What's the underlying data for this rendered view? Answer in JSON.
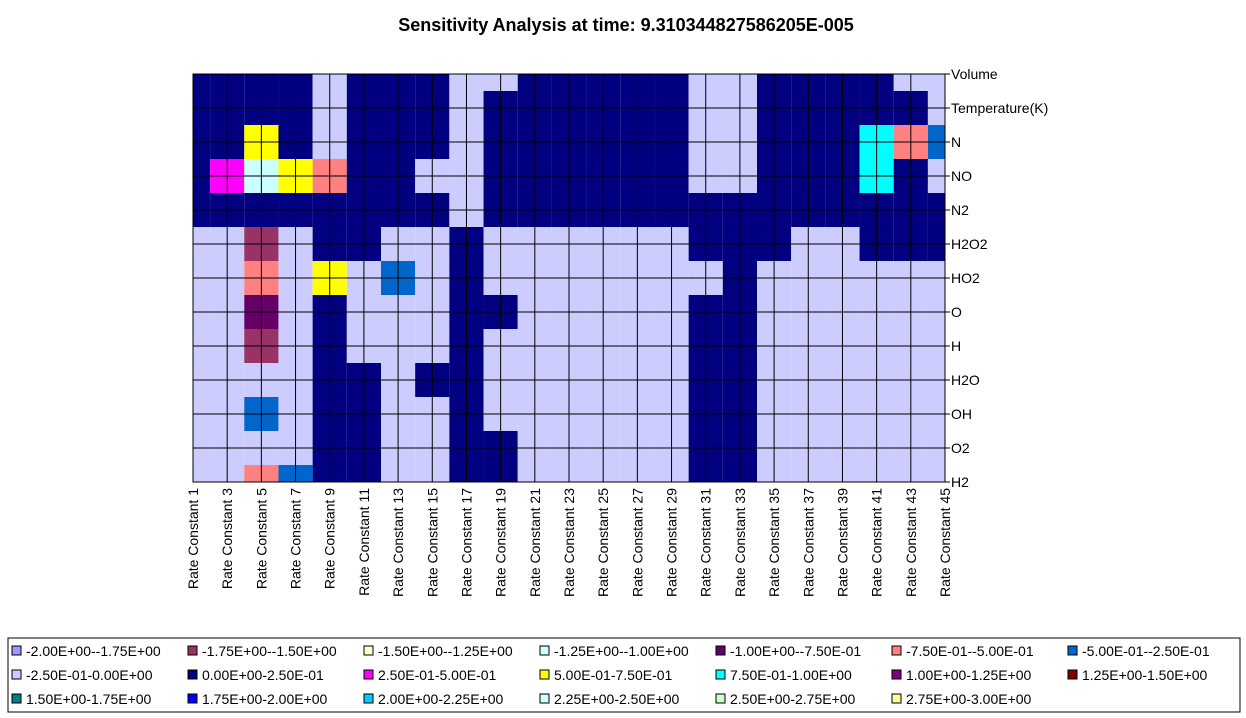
{
  "chart_data": {
    "type": "contour",
    "title": "Sensitivity Analysis at time:  9.310344827586205E-005",
    "x_categories": [
      "Rate Constant 1",
      "Rate Constant 3",
      "Rate Constant 5",
      "Rate Constant 7",
      "Rate Constant 9",
      "Rate Constant 11",
      "Rate Constant 13",
      "Rate Constant 15",
      "Rate Constant 17",
      "Rate Constant 19",
      "Rate Constant 21",
      "Rate Constant 23",
      "Rate Constant 25",
      "Rate Constant 27",
      "Rate Constant 29",
      "Rate Constant 31",
      "Rate Constant 33",
      "Rate Constant 35",
      "Rate Constant 37",
      "Rate Constant 39",
      "Rate Constant 41",
      "Rate Constant 43",
      "Rate Constant 45"
    ],
    "y_categories": [
      "Volume",
      "Temperature(K)",
      "N",
      "NO",
      "N2",
      "H2O2",
      "HO2",
      "O",
      "H",
      "H2O",
      "OH",
      "O2",
      "H2"
    ],
    "z": [
      [
        0.1,
        0.1,
        0.1,
        0.1,
        -0.1,
        0.1,
        0.1,
        0.1,
        -0.1,
        -0.1,
        0.1,
        0.1,
        0.1,
        0.1,
        0.1,
        -0.1,
        -0.1,
        0.1,
        0.1,
        0.1,
        0.1,
        -0.1,
        -0.1
      ],
      [
        0.1,
        0.1,
        0.1,
        0.1,
        -0.1,
        0.1,
        0.1,
        0.1,
        -0.1,
        0.1,
        0.1,
        0.1,
        0.1,
        0.1,
        0.1,
        -0.1,
        -0.1,
        0.1,
        0.1,
        0.1,
        0.1,
        0.1,
        -0.1
      ],
      [
        0.1,
        0.1,
        0.6,
        0.1,
        -0.1,
        0.1,
        0.1,
        0.1,
        -0.1,
        0.1,
        0.1,
        0.1,
        0.1,
        0.1,
        0.1,
        -0.1,
        -0.1,
        0.1,
        0.1,
        0.1,
        0.9,
        -0.6,
        -0.3
      ],
      [
        0.1,
        0.3,
        2.4,
        0.6,
        -0.6,
        0.1,
        0.1,
        -0.1,
        -0.1,
        0.1,
        0.1,
        0.1,
        0.1,
        0.1,
        0.1,
        -0.1,
        -0.1,
        0.1,
        0.1,
        0.1,
        0.9,
        0.1,
        -0.1
      ],
      [
        0.1,
        0.1,
        0.1,
        0.1,
        0.1,
        0.1,
        0.1,
        0.1,
        -0.1,
        0.1,
        0.1,
        0.1,
        0.1,
        0.1,
        0.1,
        0.1,
        0.1,
        0.1,
        0.1,
        0.1,
        0.1,
        0.1,
        0.1
      ],
      [
        -0.1,
        -0.1,
        -1.6,
        -0.1,
        0.1,
        0.1,
        -0.1,
        -0.1,
        0.1,
        -0.1,
        -0.1,
        -0.1,
        -0.1,
        -0.1,
        -0.1,
        0.1,
        0.1,
        0.1,
        -0.1,
        -0.1,
        0.1,
        0.1,
        0.1
      ],
      [
        -0.1,
        -0.1,
        -0.6,
        -0.1,
        0.6,
        -0.1,
        -0.3,
        -0.1,
        0.1,
        -0.1,
        -0.1,
        -0.1,
        -0.1,
        -0.1,
        -0.1,
        -0.1,
        0.1,
        -0.1,
        -0.1,
        -0.1,
        -0.1,
        -0.1,
        -0.1
      ],
      [
        -0.1,
        -0.1,
        -0.9,
        -0.1,
        0.1,
        -0.1,
        -0.1,
        -0.1,
        0.1,
        0.1,
        -0.1,
        -0.1,
        -0.1,
        -0.1,
        -0.1,
        0.1,
        0.1,
        -0.1,
        -0.1,
        -0.1,
        -0.1,
        -0.1,
        -0.1
      ],
      [
        -0.1,
        -0.1,
        -1.6,
        -0.1,
        0.1,
        -0.1,
        -0.1,
        -0.1,
        0.1,
        -0.1,
        -0.1,
        -0.1,
        -0.1,
        -0.1,
        -0.1,
        0.1,
        0.1,
        -0.1,
        -0.1,
        -0.1,
        -0.1,
        -0.1,
        -0.1
      ],
      [
        -0.1,
        -0.1,
        -0.1,
        -0.1,
        0.1,
        0.1,
        -0.1,
        0.1,
        0.1,
        -0.1,
        -0.1,
        -0.1,
        -0.1,
        -0.1,
        -0.1,
        0.1,
        0.1,
        -0.1,
        -0.1,
        -0.1,
        -0.1,
        -0.1,
        -0.1
      ],
      [
        -0.1,
        -0.1,
        -0.4,
        -0.1,
        0.1,
        0.1,
        -0.1,
        -0.1,
        0.1,
        -0.1,
        -0.1,
        -0.1,
        -0.1,
        -0.1,
        -0.1,
        0.1,
        0.1,
        -0.1,
        -0.1,
        -0.1,
        -0.1,
        -0.1,
        -0.1
      ],
      [
        -0.1,
        -0.1,
        -0.1,
        -0.1,
        0.1,
        0.1,
        -0.1,
        -0.1,
        0.1,
        0.1,
        -0.1,
        -0.1,
        -0.1,
        -0.1,
        -0.1,
        0.1,
        0.1,
        -0.1,
        -0.1,
        -0.1,
        -0.1,
        -0.1,
        -0.1
      ],
      [
        -0.1,
        -0.1,
        -0.6,
        -0.3,
        0.1,
        0.1,
        -0.1,
        -0.1,
        0.1,
        0.1,
        -0.1,
        -0.1,
        -0.1,
        -0.1,
        -0.1,
        0.1,
        0.1,
        -0.1,
        -0.1,
        -0.1,
        -0.1,
        -0.1,
        -0.1
      ]
    ],
    "bands": [
      {
        "name": "-2.00E+00--1.75E+00",
        "color": "#9999ff",
        "range": [
          -2,
          -1.75
        ]
      },
      {
        "name": "-1.75E+00--1.50E+00",
        "color": "#993366",
        "range": [
          -1.75,
          -1.5
        ]
      },
      {
        "name": "-1.50E+00--1.25E+00",
        "color": "#ffffcc",
        "range": [
          -1.5,
          -1.25
        ]
      },
      {
        "name": "-1.25E+00--1.00E+00",
        "color": "#ccffff",
        "range": [
          -1.25,
          -1
        ]
      },
      {
        "name": "-1.00E+00--7.50E-01",
        "color": "#660066",
        "range": [
          -1,
          -0.75
        ]
      },
      {
        "name": "-7.50E-01--5.00E-01",
        "color": "#ff8080",
        "range": [
          -0.75,
          -0.5
        ]
      },
      {
        "name": "-5.00E-01--2.50E-01",
        "color": "#0066cc",
        "range": [
          -0.5,
          -0.25
        ]
      },
      {
        "name": "-2.50E-01-0.00E+00",
        "color": "#ccccff",
        "range": [
          -0.25,
          0
        ]
      },
      {
        "name": "0.00E+00-2.50E-01",
        "color": "#000080",
        "range": [
          0,
          0.25
        ]
      },
      {
        "name": "2.50E-01-5.00E-01",
        "color": "#ff00ff",
        "range": [
          0.25,
          0.5
        ]
      },
      {
        "name": "5.00E-01-7.50E-01",
        "color": "#ffff00",
        "range": [
          0.5,
          0.75
        ]
      },
      {
        "name": "7.50E-01-1.00E+00",
        "color": "#00ffff",
        "range": [
          0.75,
          1
        ]
      },
      {
        "name": "1.00E+00-1.25E+00",
        "color": "#800080",
        "range": [
          1,
          1.25
        ]
      },
      {
        "name": "1.25E+00-1.50E+00",
        "color": "#800000",
        "range": [
          1.25,
          1.5
        ]
      },
      {
        "name": "1.50E+00-1.75E+00",
        "color": "#008080",
        "range": [
          1.5,
          1.75
        ]
      },
      {
        "name": "1.75E+00-2.00E+00",
        "color": "#0000ff",
        "range": [
          1.75,
          2
        ]
      },
      {
        "name": "2.00E+00-2.25E+00",
        "color": "#00ccff",
        "range": [
          2,
          2.25
        ]
      },
      {
        "name": "2.25E+00-2.50E+00",
        "color": "#ccffff",
        "range": [
          2.25,
          2.5
        ]
      },
      {
        "name": "2.50E+00-2.75E+00",
        "color": "#ccffcc",
        "range": [
          2.5,
          2.75
        ]
      },
      {
        "name": "2.75E+00-3.00E+00",
        "color": "#ffff99",
        "range": [
          2.75,
          3
        ]
      }
    ]
  }
}
